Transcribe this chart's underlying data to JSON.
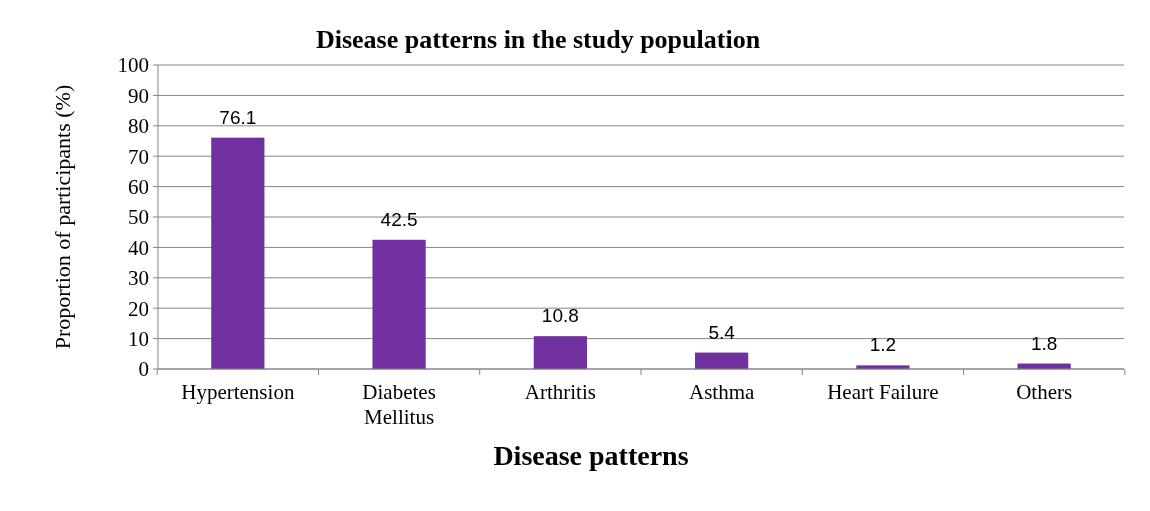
{
  "chart_data": {
    "type": "bar",
    "title": "Disease patterns in the study population",
    "xlabel": "Disease patterns",
    "ylabel": "Proportion of participants (%)",
    "categories": [
      "Hypertension",
      "Diabetes Mellitus",
      "Arthritis",
      "Asthma",
      "Heart Failure",
      "Others"
    ],
    "values": [
      76.1,
      42.5,
      10.8,
      5.4,
      1.2,
      1.8
    ],
    "color": "#7030a0",
    "ylim": [
      0,
      100
    ],
    "yticks": [
      0,
      10,
      20,
      30,
      40,
      50,
      60,
      70,
      80,
      90,
      100
    ],
    "grid": "y",
    "data_labels": true
  }
}
